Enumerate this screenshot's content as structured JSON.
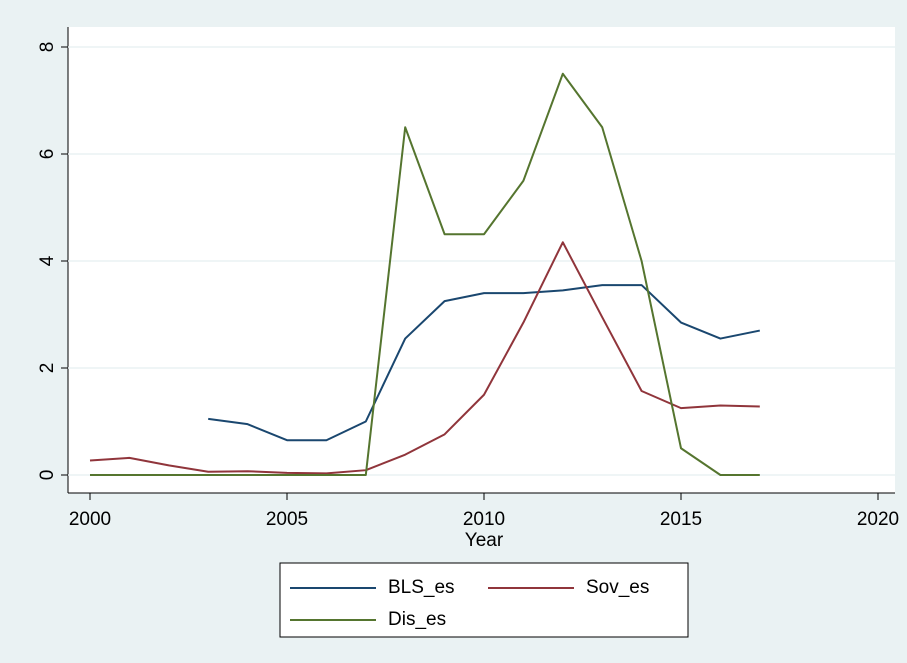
{
  "chart_data": {
    "type": "line",
    "x": [
      2000,
      2001,
      2002,
      2003,
      2004,
      2005,
      2006,
      2007,
      2008,
      2009,
      2010,
      2011,
      2012,
      2013,
      2014,
      2015,
      2016,
      2017
    ],
    "series": [
      {
        "name": "BLS_es",
        "color": "#1a476f",
        "values": [
          null,
          null,
          null,
          1.05,
          0.95,
          0.65,
          0.65,
          1.0,
          2.55,
          3.25,
          3.4,
          3.4,
          3.45,
          3.55,
          3.55,
          2.85,
          2.55,
          2.7
        ]
      },
      {
        "name": "Sov_es",
        "color": "#90353b",
        "values": [
          0.27,
          0.32,
          0.18,
          0.06,
          0.07,
          0.04,
          0.03,
          0.09,
          0.38,
          0.76,
          1.5,
          2.85,
          4.35,
          2.95,
          1.57,
          1.25,
          1.3,
          1.28
        ]
      },
      {
        "name": "Dis_es",
        "color": "#55752f",
        "values": [
          0,
          0,
          0,
          0,
          0,
          0,
          0,
          0,
          6.5,
          4.5,
          4.5,
          5.5,
          7.5,
          6.5,
          4.0,
          0.5,
          0,
          0
        ]
      }
    ],
    "x_label": "Year",
    "xlim": [
      2000,
      2020
    ],
    "xticks": [
      2000,
      2005,
      2010,
      2015,
      2020
    ],
    "ylim": [
      0,
      8
    ],
    "yticks": [
      0,
      2,
      4,
      6,
      8
    ],
    "grid": true,
    "legend": "bottom"
  }
}
